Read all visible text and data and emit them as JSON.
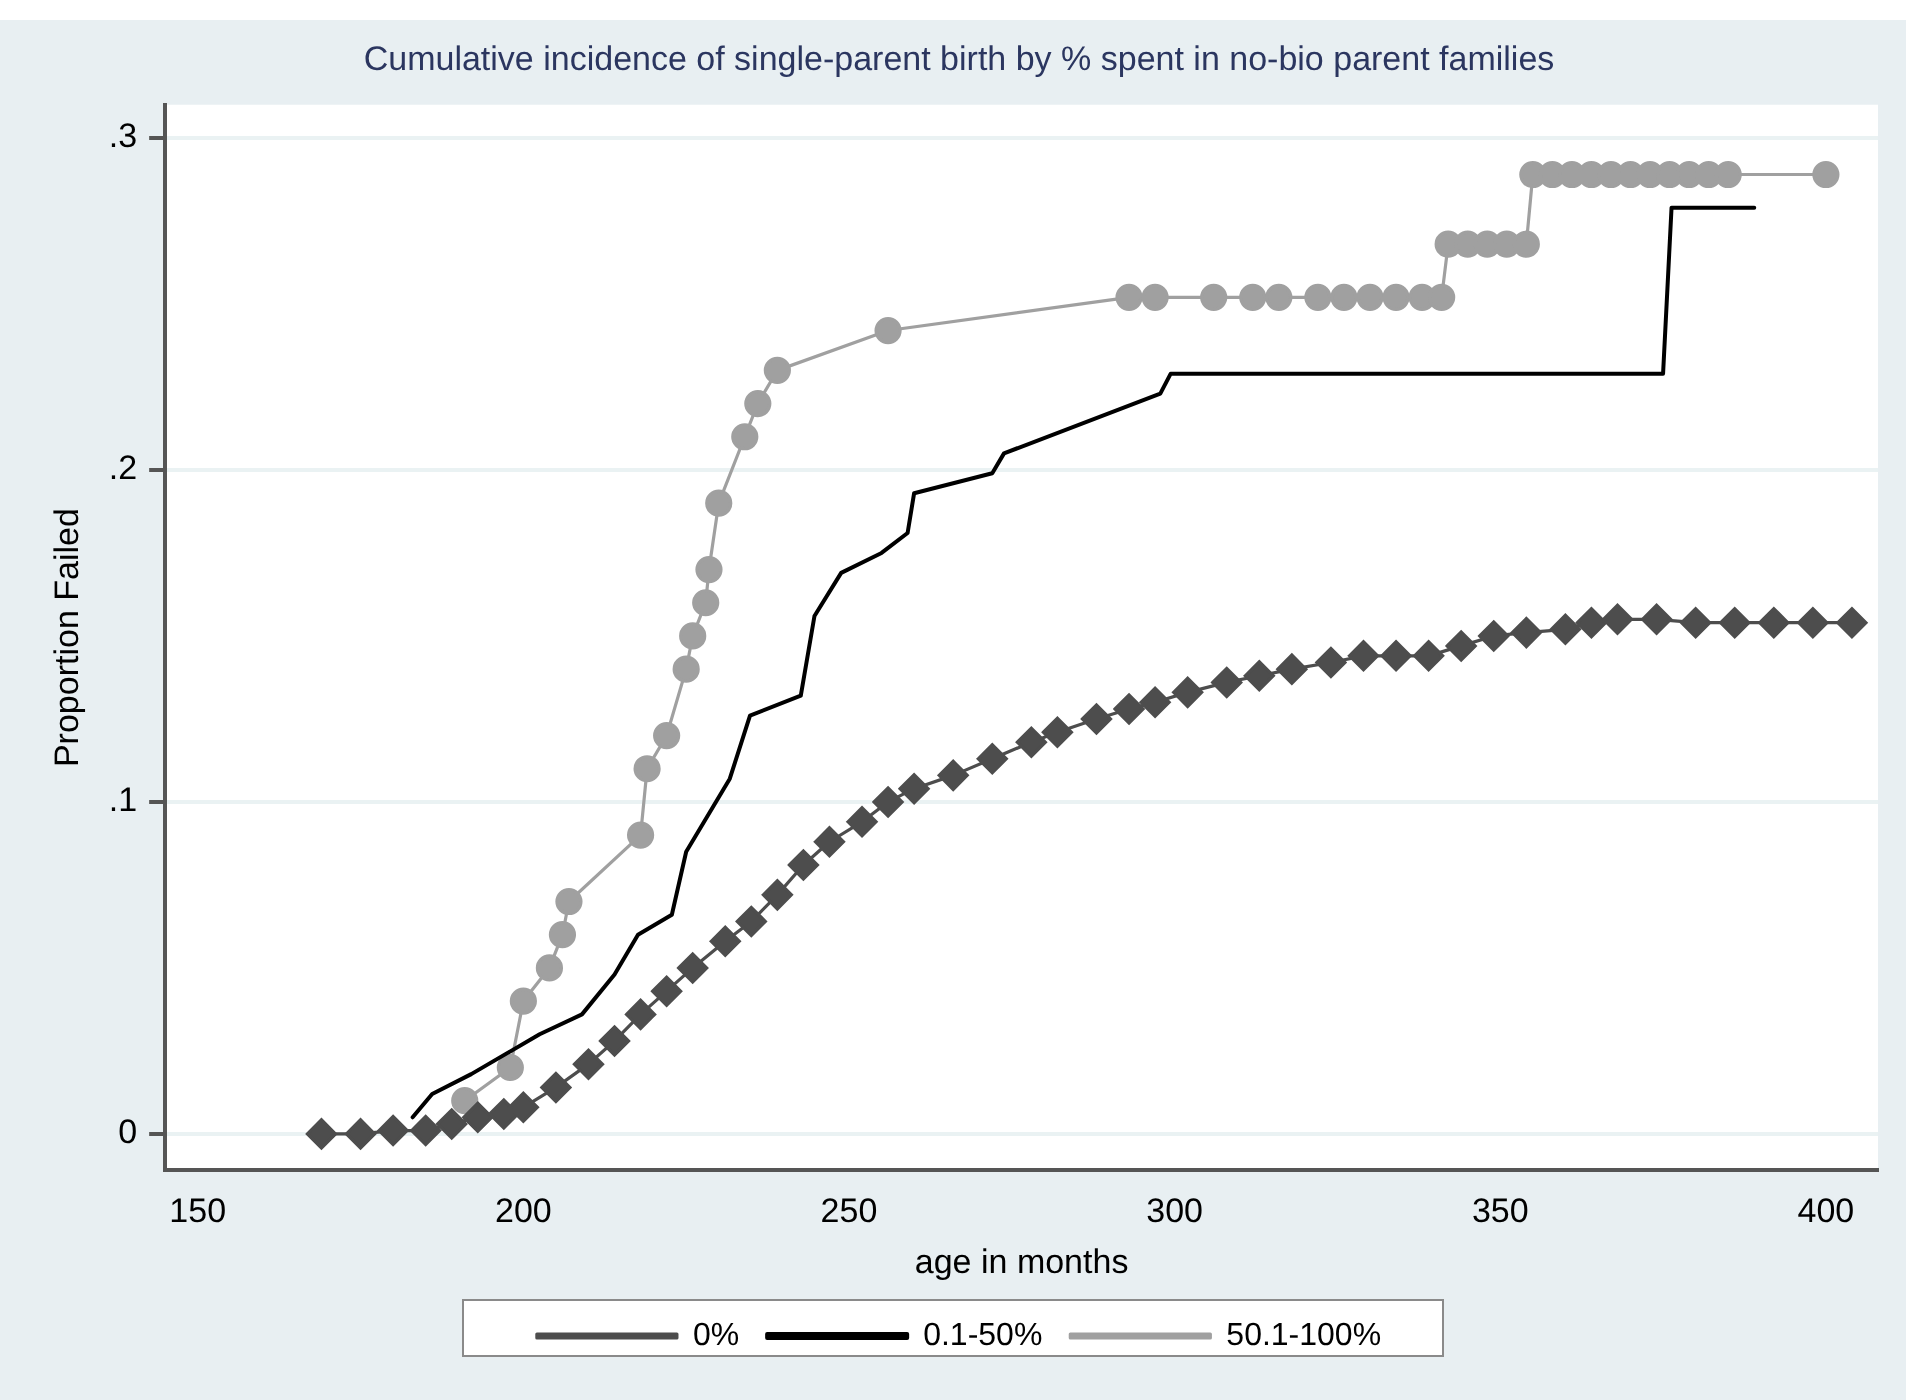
{
  "chart_data": {
    "type": "line",
    "title": "Cumulative incidence of single-parent birth by % spent in no-bio parent families",
    "xlabel": "age in months",
    "ylabel": "Proportion Failed",
    "xlim": [
      145,
      408
    ],
    "xticks": [
      150,
      200,
      250,
      300,
      350,
      400
    ],
    "ylim": [
      -0.011,
      0.31
    ],
    "yticks": [
      {
        "value": 0,
        "label": "0"
      },
      {
        "value": 0.1,
        "label": ".1"
      },
      {
        "value": 0.2,
        "label": ".2"
      },
      {
        "value": 0.3,
        "label": ".3"
      }
    ],
    "grid": "y",
    "legend": "bottom",
    "series": [
      {
        "name": "0%",
        "color": "#4d4d4d",
        "marker": "diamond",
        "x": [
          169,
          175,
          180,
          185,
          189,
          193,
          197,
          200,
          205,
          210,
          214,
          218,
          222,
          226,
          231,
          235,
          239,
          243,
          247,
          252,
          256,
          260,
          266,
          272,
          278,
          282,
          288,
          293,
          297,
          302,
          308,
          313,
          318,
          324,
          329,
          334,
          339,
          344,
          349,
          354,
          360,
          364,
          368,
          374,
          380,
          386,
          392,
          398,
          404
        ],
        "values": [
          0,
          0,
          0.001,
          0.001,
          0.003,
          0.005,
          0.006,
          0.008,
          0.014,
          0.021,
          0.028,
          0.036,
          0.043,
          0.05,
          0.058,
          0.064,
          0.072,
          0.081,
          0.088,
          0.094,
          0.1,
          0.104,
          0.108,
          0.113,
          0.118,
          0.121,
          0.125,
          0.128,
          0.13,
          0.133,
          0.136,
          0.138,
          0.14,
          0.142,
          0.144,
          0.144,
          0.144,
          0.147,
          0.15,
          0.151,
          0.152,
          0.154,
          0.155,
          0.155,
          0.154,
          0.154,
          0.154,
          0.154,
          0.154
        ]
      },
      {
        "name": "0.1-50%",
        "color": "#000000",
        "marker": "none",
        "x": [
          183,
          186,
          192,
          202.5,
          209,
          214,
          217.6,
          222.8,
          225,
          231.7,
          234.8,
          242.6,
          244.7,
          248.8,
          255,
          259,
          260,
          272,
          273.8,
          297.8,
          299.4,
          375,
          376.3,
          389
        ],
        "values": [
          0.005,
          0.012,
          0.018,
          0.03,
          0.036,
          0.048,
          0.06,
          0.066,
          0.085,
          0.107,
          0.126,
          0.132,
          0.156,
          0.169,
          0.175,
          0.181,
          0.193,
          0.199,
          0.205,
          0.223,
          0.229,
          0.229,
          0.279,
          0.279
        ]
      },
      {
        "name": "50.1-100%",
        "color": "#a0a0a0",
        "marker": "circle",
        "x": [
          191,
          198,
          200,
          204,
          206,
          207,
          218,
          219,
          222,
          225,
          226,
          228,
          228.5,
          230,
          234,
          236,
          239,
          256,
          293,
          297,
          306,
          312,
          316,
          322,
          326,
          330,
          334,
          338,
          341,
          342,
          345,
          348,
          351,
          354,
          355,
          358,
          361,
          364,
          367,
          370,
          373,
          376,
          379,
          382,
          385,
          400
        ],
        "values": [
          0.01,
          0.02,
          0.04,
          0.05,
          0.06,
          0.07,
          0.09,
          0.11,
          0.12,
          0.14,
          0.15,
          0.16,
          0.17,
          0.19,
          0.21,
          0.22,
          0.23,
          0.242,
          0.252,
          0.252,
          0.252,
          0.252,
          0.252,
          0.252,
          0.252,
          0.252,
          0.252,
          0.252,
          0.252,
          0.268,
          0.268,
          0.268,
          0.268,
          0.268,
          0.289,
          0.289,
          0.289,
          0.289,
          0.289,
          0.289,
          0.289,
          0.289,
          0.289,
          0.289,
          0.289,
          0.289
        ]
      }
    ]
  }
}
